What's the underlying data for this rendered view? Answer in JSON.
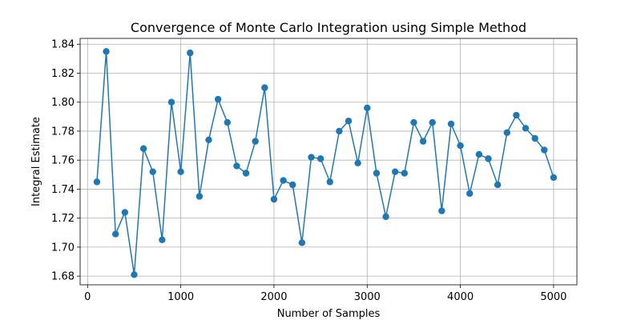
{
  "chart_data": {
    "type": "line",
    "title": "Convergence of Monte Carlo Integration using Simple Method",
    "xlabel": "Number of Samples",
    "ylabel": "Integral Estimate",
    "xlim": [
      -80,
      5250
    ],
    "ylim": [
      1.674,
      1.844
    ],
    "xticks": [
      0,
      1000,
      2000,
      3000,
      4000,
      5000
    ],
    "xtick_labels": [
      "0",
      "1000",
      "2000",
      "3000",
      "4000",
      "5000"
    ],
    "yticks": [
      1.68,
      1.7,
      1.72,
      1.74,
      1.76,
      1.78,
      1.8,
      1.82,
      1.84
    ],
    "ytick_labels": [
      "1.68",
      "1.70",
      "1.72",
      "1.74",
      "1.76",
      "1.78",
      "1.80",
      "1.82",
      "1.84"
    ],
    "grid": true,
    "marker": "circle",
    "color": "#1f77b4",
    "series": [
      {
        "x": [
          100,
          200,
          300,
          400,
          500,
          600,
          700,
          800,
          900,
          1000,
          1100,
          1200,
          1300,
          1400,
          1500,
          1600,
          1700,
          1800,
          1900,
          2000,
          2100,
          2200,
          2300,
          2400,
          2500,
          2600,
          2700,
          2800,
          2900,
          3000,
          3100,
          3200,
          3300,
          3400,
          3500,
          3600,
          3700,
          3800,
          3900,
          4000,
          4100,
          4200,
          4300,
          4400,
          4500,
          4600,
          4700,
          4800,
          4900,
          5000
        ],
        "values": [
          1.745,
          1.835,
          1.709,
          1.724,
          1.681,
          1.768,
          1.752,
          1.705,
          1.8,
          1.752,
          1.834,
          1.735,
          1.774,
          1.802,
          1.786,
          1.756,
          1.751,
          1.773,
          1.81,
          1.733,
          1.746,
          1.743,
          1.703,
          1.762,
          1.761,
          1.745,
          1.78,
          1.787,
          1.758,
          1.796,
          1.751,
          1.721,
          1.752,
          1.751,
          1.786,
          1.773,
          1.786,
          1.725,
          1.785,
          1.77,
          1.737,
          1.764,
          1.761,
          1.743,
          1.779,
          1.791,
          1.782,
          1.775,
          1.767,
          1.748
        ]
      }
    ]
  }
}
